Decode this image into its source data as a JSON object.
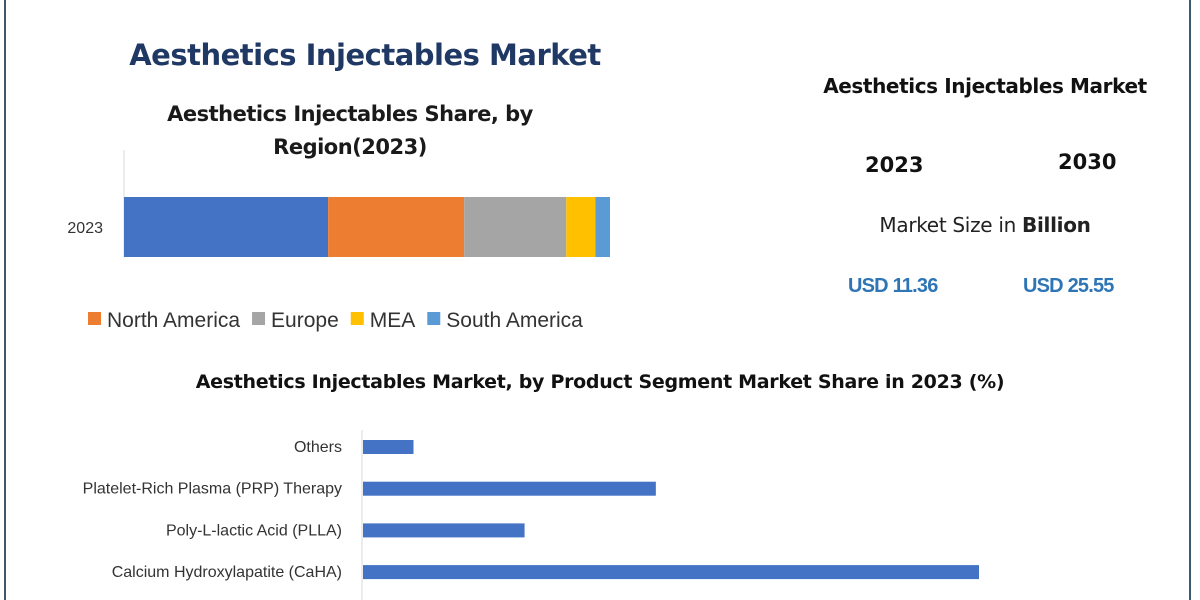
{
  "header": {
    "title": "Aesthetics Injectables Market"
  },
  "summary": {
    "title": "Aesthetics Injectables Market",
    "years": [
      "2023",
      "2030"
    ],
    "market_size_prefix": "Market Size in ",
    "market_size_unit": "Billion",
    "values": [
      "USD 11.36",
      "USD 25.55"
    ],
    "value_color": "#2e75b6"
  },
  "chart_data": [
    {
      "type": "bar",
      "orientation": "horizontal",
      "stacked": true,
      "title_line1": "Aesthetics Injectables Share, by",
      "title_line2": "Region(2023)",
      "categories": [
        "2023"
      ],
      "legend_placement": "bottom",
      "series": [
        {
          "name": "",
          "values": [
            42
          ],
          "color": "#4472c4"
        },
        {
          "name": "North America",
          "values": [
            28
          ],
          "color": "#ed7d31"
        },
        {
          "name": "Europe",
          "values": [
            21
          ],
          "color": "#a5a5a5"
        },
        {
          "name": "MEA",
          "values": [
            6
          ],
          "color": "#ffc000"
        },
        {
          "name": "South America",
          "values": [
            3
          ],
          "color": "#5b9bd5"
        }
      ],
      "grid": false
    },
    {
      "type": "bar",
      "orientation": "horizontal",
      "title": "Aesthetics Injectables Market, by Product Segment Market Share in 2023 (%)",
      "categories": [
        "Others",
        "Platelet-Rich Plasma (PRP) Therapy",
        "Poly-L-lactic Acid (PLLA)",
        "Calcium Hydroxylapatite (CaHA)"
      ],
      "values": [
        5,
        29,
        16,
        61
      ],
      "xlim": [
        0,
        100
      ],
      "color": "#4472c4",
      "grid": false
    }
  ]
}
